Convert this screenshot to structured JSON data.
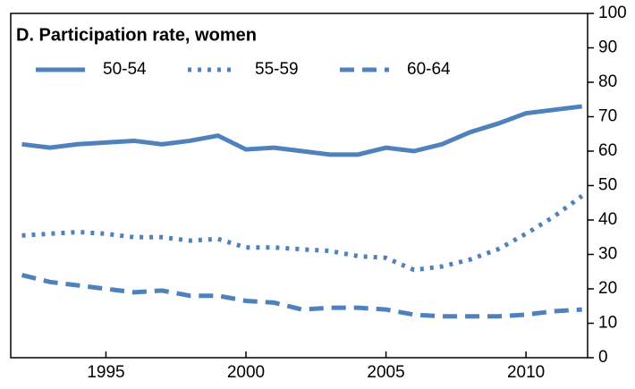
{
  "chart_data": {
    "type": "line",
    "title": "D. Participation rate, women",
    "x": [
      1992,
      1993,
      1994,
      1995,
      1996,
      1997,
      1998,
      1999,
      2000,
      2001,
      2002,
      2003,
      2004,
      2005,
      2006,
      2007,
      2008,
      2009,
      2010,
      2011,
      2012
    ],
    "series": [
      {
        "name": "50-54",
        "color": "#4f81bd",
        "dash": "solid",
        "values": [
          62,
          61,
          62,
          62.5,
          63,
          62,
          63,
          64.5,
          60.5,
          61,
          60,
          59,
          59,
          61,
          60,
          62,
          65.5,
          68,
          71,
          72,
          73
        ]
      },
      {
        "name": "55-59",
        "color": "#4f81bd",
        "dash": "dotted",
        "values": [
          35.5,
          36,
          36.5,
          36,
          35,
          35,
          34,
          34.5,
          32,
          32,
          31.5,
          31,
          29.5,
          29,
          25.5,
          26.5,
          28.5,
          31.5,
          36,
          41,
          47
        ]
      },
      {
        "name": "60-64",
        "color": "#4f81bd",
        "dash": "dashed",
        "values": [
          24,
          22,
          21,
          20,
          19,
          19.5,
          18,
          18,
          16.5,
          16,
          14,
          14.5,
          14.5,
          14,
          12.5,
          12,
          12,
          12,
          12.5,
          13.5,
          14
        ]
      }
    ],
    "xlim": [
      1991.6,
      2012.2
    ],
    "xticks": [
      1995,
      2000,
      2005,
      2010
    ],
    "ylim": [
      0,
      100
    ],
    "yticks": [
      0,
      10,
      20,
      30,
      40,
      50,
      60,
      70,
      80,
      90,
      100
    ]
  }
}
